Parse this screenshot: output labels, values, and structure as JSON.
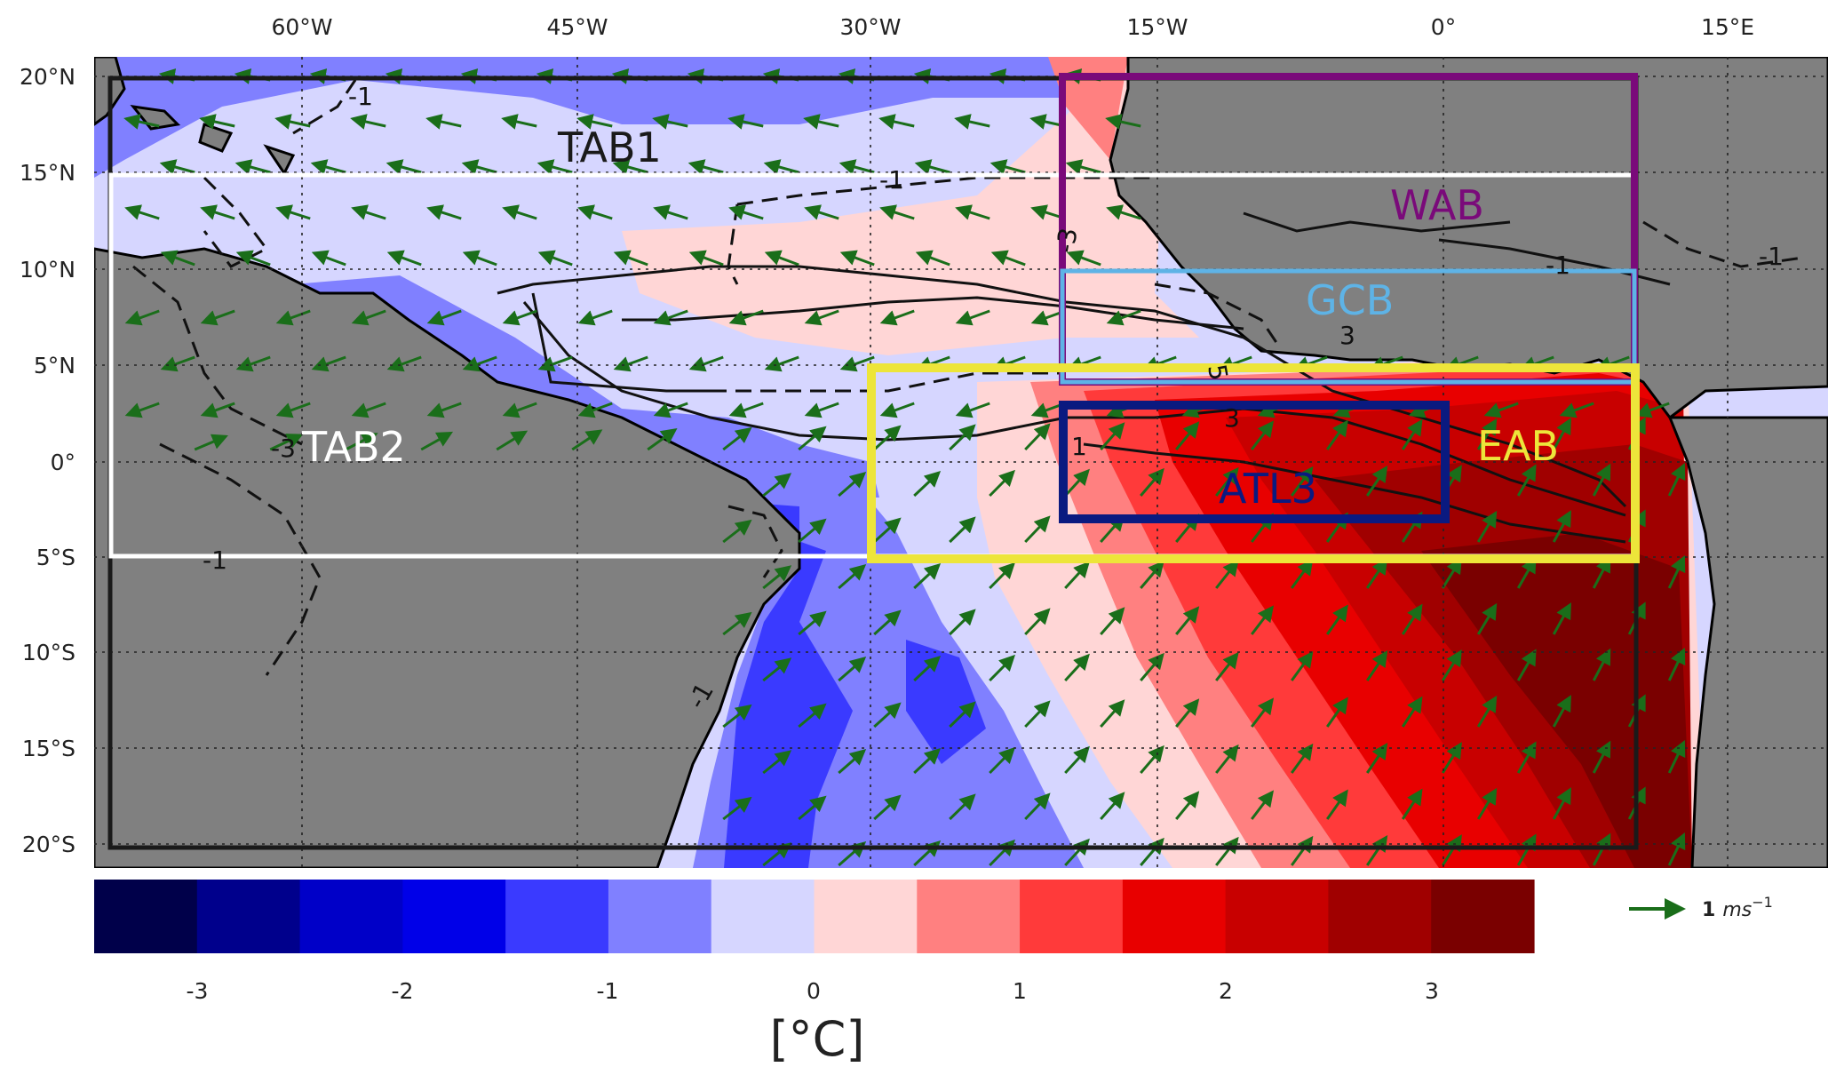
{
  "map": {
    "lon_ticks": [
      "60°W",
      "45°W",
      "30°W",
      "15°W",
      "0°",
      "15°E"
    ],
    "lat_ticks": [
      "20°N",
      "15°N",
      "10°N",
      "5°N",
      "0°",
      "5°S",
      "10°S",
      "15°S",
      "20°S"
    ],
    "boxes": [
      {
        "label": "TAB1",
        "color": "#1a1a1a"
      },
      {
        "label": "TAB2",
        "color": "#ffffff"
      },
      {
        "label": "WAB",
        "color": "#7a0a7a"
      },
      {
        "label": "GCB",
        "color": "#5eb3e6"
      },
      {
        "label": "EAB",
        "color": "#ede53a"
      },
      {
        "label": "ATL3",
        "color": "#0a1a80"
      }
    ],
    "contour_labels": [
      "-1",
      "-3",
      "-1",
      "-1",
      "-1",
      "-1",
      "3",
      "5",
      "3",
      "1",
      "-3",
      "-1"
    ],
    "land_color": "#808080",
    "arrow_color": "#1a6e1a"
  },
  "colorbar": {
    "ticks": [
      "-3",
      "-2",
      "-1",
      "0",
      "1",
      "2",
      "3"
    ],
    "unit_label": "[°C]",
    "colors": [
      "#00004a",
      "#00008c",
      "#0000c8",
      "#0000e8",
      "#3a3aff",
      "#8080ff",
      "#d6d6ff",
      "#ffd6d6",
      "#ff8080",
      "#ff3a3a",
      "#e80000",
      "#c80000",
      "#a00000",
      "#7a0000"
    ]
  },
  "legend": {
    "value": "1",
    "unit": "ms",
    "exponent": "−1"
  }
}
